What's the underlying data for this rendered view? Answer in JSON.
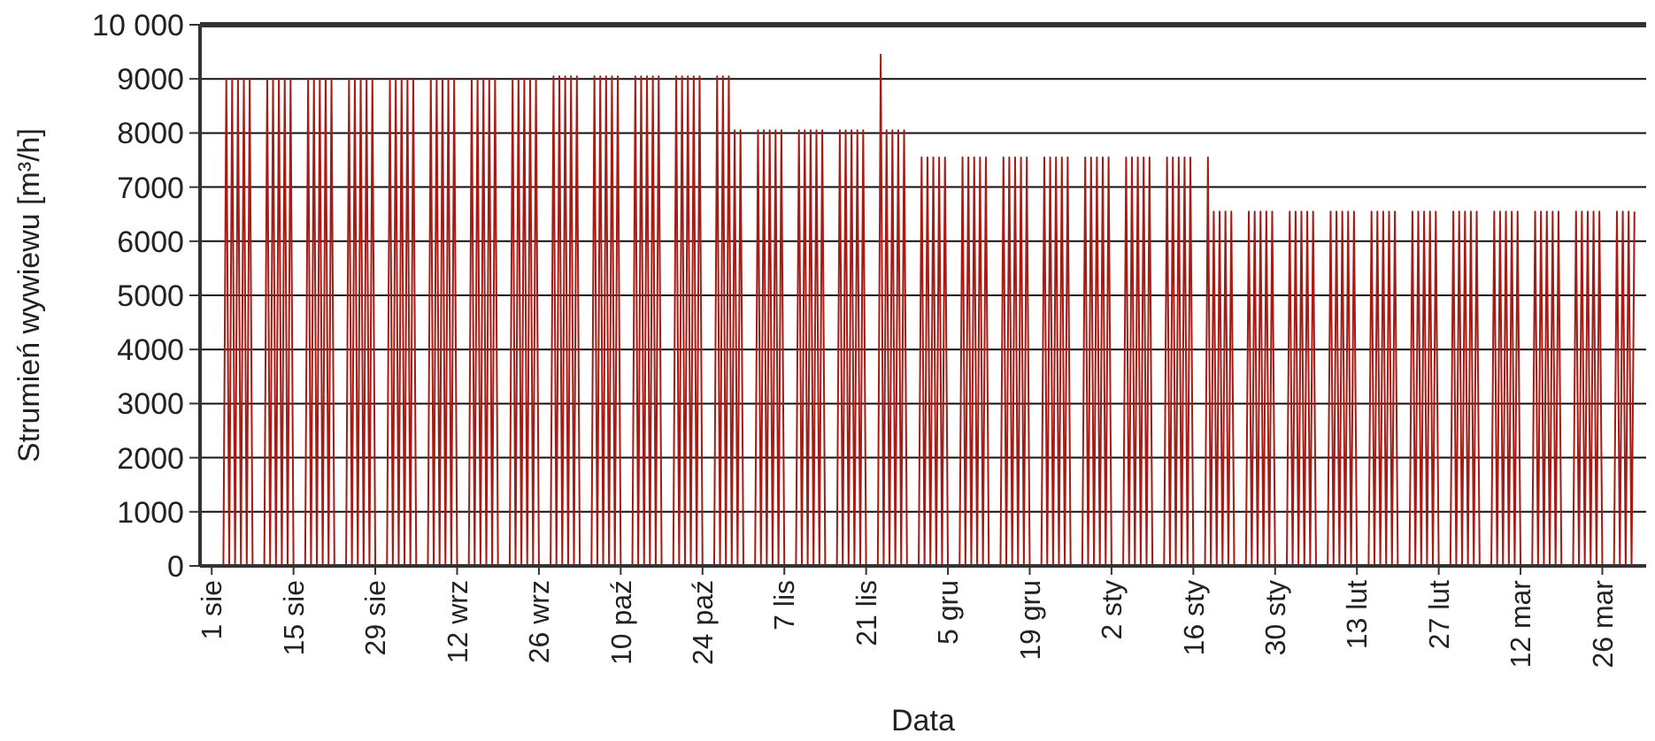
{
  "chart_data": {
    "type": "line",
    "xlabel": "Data",
    "ylabel": "Strumień wywiewu [m³/h]",
    "ylim": [
      0,
      10000
    ],
    "yticks": [
      0,
      1000,
      2000,
      3000,
      4000,
      5000,
      6000,
      7000,
      8000,
      9000,
      {
        "value": 10000,
        "label": "10 000"
      }
    ],
    "grid": "y",
    "marker": "none",
    "line_style": "solid",
    "categories": [
      "1 sie",
      null,
      null,
      null,
      null,
      null,
      null,
      null,
      null,
      null,
      null,
      null,
      null,
      null,
      null,
      null,
      null,
      null,
      null,
      null,
      null,
      null,
      null,
      null,
      null,
      null,
      null,
      null,
      "15 sie",
      null,
      null,
      null,
      null,
      null,
      null,
      null,
      null,
      null,
      null,
      null,
      null,
      null,
      null,
      null,
      null,
      null,
      null,
      null,
      null,
      null,
      null,
      null,
      null,
      null,
      null,
      null,
      "29 sie",
      null,
      null,
      null,
      null,
      null,
      null,
      null,
      null,
      null,
      null,
      null,
      null,
      null,
      null,
      null,
      null,
      null,
      null,
      null,
      null,
      null,
      null,
      null,
      null,
      null,
      null,
      null,
      "12 wrz",
      null,
      null,
      null,
      null,
      null,
      null,
      null,
      null,
      null,
      null,
      null,
      null,
      null,
      null,
      null,
      null,
      null,
      null,
      null,
      null,
      null,
      null,
      null,
      null,
      null,
      null,
      null,
      "26 wrz",
      null,
      null,
      null,
      null,
      null,
      null,
      null,
      null,
      null,
      null,
      null,
      null,
      null,
      null,
      null,
      null,
      null,
      null,
      null,
      null,
      null,
      null,
      null,
      null,
      null,
      null,
      null,
      "10 paź",
      null,
      null,
      null,
      null,
      null,
      null,
      null,
      null,
      null,
      null,
      null,
      null,
      null,
      null,
      null,
      null,
      null,
      null,
      null,
      null,
      null,
      null,
      null,
      null,
      null,
      null,
      null,
      "24 paź",
      null,
      null,
      null,
      null,
      null,
      null,
      null,
      null,
      null,
      null,
      null,
      null,
      null,
      null,
      null,
      null,
      null,
      null,
      null,
      null,
      null,
      null,
      null,
      null,
      null,
      null,
      null,
      "7 lis",
      null,
      null,
      null,
      null,
      null,
      null,
      null,
      null,
      null,
      null,
      null,
      null,
      null,
      null,
      null,
      null,
      null,
      null,
      null,
      null,
      null,
      null,
      null,
      null,
      null,
      null,
      null,
      "21 lis",
      null,
      null,
      null,
      null,
      null,
      null,
      null,
      null,
      null,
      null,
      null,
      null,
      null,
      null,
      null,
      null,
      null,
      null,
      null,
      null,
      null,
      null,
      null,
      null,
      null,
      null,
      null,
      "5 gru",
      null,
      null,
      null,
      null,
      null,
      null,
      null,
      null,
      null,
      null,
      null,
      null,
      null,
      null,
      null,
      null,
      null,
      null,
      null,
      null,
      null,
      null,
      null,
      null,
      null,
      null,
      null,
      "19 gru",
      null,
      null,
      null,
      null,
      null,
      null,
      null,
      null,
      null,
      null,
      null,
      null,
      null,
      null,
      null,
      null,
      null,
      null,
      null,
      null,
      null,
      null,
      null,
      null,
      null,
      null,
      null,
      "2 sty",
      null,
      null,
      null,
      null,
      null,
      null,
      null,
      null,
      null,
      null,
      null,
      null,
      null,
      null,
      null,
      null,
      null,
      null,
      null,
      null,
      null,
      null,
      null,
      null,
      null,
      null,
      null,
      "16 sty",
      null,
      null,
      null,
      null,
      null,
      null,
      null,
      null,
      null,
      null,
      null,
      null,
      null,
      null,
      null,
      null,
      null,
      null,
      null,
      null,
      null,
      null,
      null,
      null,
      null,
      null,
      null,
      "30 sty",
      null,
      null,
      null,
      null,
      null,
      null,
      null,
      null,
      null,
      null,
      null,
      null,
      null,
      null,
      null,
      null,
      null,
      null,
      null,
      null,
      null,
      null,
      null,
      null,
      null,
      null,
      null,
      "13 lut",
      null,
      null,
      null,
      null,
      null,
      null,
      null,
      null,
      null,
      null,
      null,
      null,
      null,
      null,
      null,
      null,
      null,
      null,
      null,
      null,
      null,
      null,
      null,
      null,
      null,
      null,
      null,
      "27 lut",
      null,
      null,
      null,
      null,
      null,
      null,
      null,
      null,
      null,
      null,
      null,
      null,
      null,
      null,
      null,
      null,
      null,
      null,
      null,
      null,
      null,
      null,
      null,
      null,
      null,
      null,
      null,
      "12 mar",
      null,
      null,
      null,
      null,
      null,
      null,
      null,
      null,
      null,
      null,
      null,
      null,
      null,
      null,
      null,
      null,
      null,
      null,
      null,
      null,
      null,
      null,
      null,
      null,
      null,
      null,
      null,
      "26 mar",
      null,
      null,
      null,
      null,
      null,
      null,
      null,
      null,
      null,
      null,
      null
    ],
    "series": [
      {
        "color": "#a81a14",
        "values": [
          0,
          0,
          0,
          0,
          0,
          9000,
          0,
          9000,
          0,
          9000,
          0,
          9000,
          0,
          9000,
          0,
          0,
          0,
          0,
          0,
          9000,
          0,
          9000,
          0,
          9000,
          0,
          9000,
          0,
          9000,
          0,
          0,
          0,
          0,
          0,
          9000,
          0,
          9000,
          0,
          9000,
          0,
          9000,
          0,
          9000,
          0,
          0,
          0,
          0,
          0,
          9000,
          0,
          9000,
          0,
          9000,
          0,
          9000,
          0,
          9000,
          0,
          0,
          0,
          0,
          0,
          9000,
          0,
          9000,
          0,
          9000,
          0,
          9000,
          0,
          9000,
          0,
          0,
          0,
          0,
          0,
          9000,
          0,
          9000,
          0,
          9000,
          0,
          9000,
          0,
          9000,
          0,
          0,
          0,
          0,
          0,
          9000,
          0,
          9000,
          0,
          9000,
          0,
          9000,
          0,
          9000,
          0,
          0,
          0,
          0,
          0,
          9000,
          0,
          9000,
          0,
          9000,
          0,
          9000,
          0,
          9000,
          0,
          0,
          0,
          0,
          0,
          9050,
          0,
          9050,
          0,
          9050,
          0,
          9050,
          0,
          9050,
          0,
          0,
          0,
          0,
          0,
          9050,
          0,
          9050,
          0,
          9050,
          0,
          9050,
          0,
          9050,
          0,
          0,
          0,
          0,
          0,
          9050,
          0,
          9050,
          0,
          9050,
          0,
          9050,
          0,
          9050,
          0,
          0,
          0,
          0,
          0,
          9050,
          0,
          9050,
          0,
          9050,
          0,
          9050,
          0,
          9050,
          0,
          0,
          0,
          0,
          0,
          9050,
          0,
          9050,
          0,
          9050,
          0,
          8050,
          0,
          8050,
          0,
          0,
          0,
          0,
          0,
          8050,
          0,
          8050,
          0,
          8050,
          0,
          8050,
          0,
          8050,
          0,
          0,
          0,
          0,
          0,
          8050,
          0,
          8050,
          0,
          8050,
          0,
          8050,
          0,
          8050,
          0,
          0,
          0,
          0,
          0,
          8050,
          0,
          8050,
          0,
          8050,
          0,
          8050,
          0,
          8050,
          0,
          0,
          0,
          0,
          0,
          9450,
          0,
          8050,
          0,
          8050,
          0,
          8050,
          0,
          8050,
          0,
          0,
          0,
          0,
          0,
          7550,
          0,
          7550,
          0,
          7550,
          0,
          7550,
          0,
          7550,
          0,
          0,
          0,
          0,
          0,
          7550,
          0,
          7550,
          0,
          7550,
          0,
          7550,
          0,
          7550,
          0,
          0,
          0,
          0,
          0,
          7550,
          0,
          7550,
          0,
          7550,
          0,
          7550,
          0,
          7550,
          0,
          0,
          0,
          0,
          0,
          7550,
          0,
          7550,
          0,
          7550,
          0,
          7550,
          0,
          7550,
          0,
          0,
          0,
          0,
          0,
          7550,
          0,
          7550,
          0,
          7550,
          0,
          7550,
          0,
          7550,
          0,
          0,
          0,
          0,
          0,
          7550,
          0,
          7550,
          0,
          7550,
          0,
          7550,
          0,
          7550,
          0,
          0,
          0,
          0,
          0,
          7550,
          0,
          7550,
          0,
          7550,
          0,
          7550,
          0,
          7550,
          0,
          0,
          0,
          0,
          0,
          7550,
          0,
          6550,
          0,
          6550,
          0,
          6550,
          0,
          6550,
          0,
          0,
          0,
          0,
          0,
          6550,
          0,
          6550,
          0,
          6550,
          0,
          6550,
          0,
          6550,
          0,
          0,
          0,
          0,
          0,
          6550,
          0,
          6550,
          0,
          6550,
          0,
          6550,
          0,
          6550,
          0,
          0,
          0,
          0,
          0,
          6550,
          0,
          6550,
          0,
          6550,
          0,
          6550,
          0,
          6550,
          0,
          0,
          0,
          0,
          0,
          6550,
          0,
          6550,
          0,
          6550,
          0,
          6550,
          0,
          6550,
          0,
          0,
          0,
          0,
          0,
          6550,
          0,
          6550,
          0,
          6550,
          0,
          6550,
          0,
          6550,
          0,
          0,
          0,
          0,
          0,
          6550,
          0,
          6550,
          0,
          6550,
          0,
          6550,
          0,
          6550,
          0,
          0,
          0,
          0,
          0,
          6550,
          0,
          6550,
          0,
          6550,
          0,
          6550,
          0,
          6550,
          0,
          0,
          0,
          0,
          0,
          6550,
          0,
          6550,
          0,
          6550,
          0,
          6550,
          0,
          6550,
          0,
          0,
          0,
          0,
          0,
          6550,
          0,
          6550,
          0,
          6550,
          0,
          6550,
          0,
          6550,
          0,
          0,
          0,
          0,
          0,
          6550,
          0,
          6550,
          0,
          6550,
          0,
          6550
        ]
      }
    ]
  }
}
